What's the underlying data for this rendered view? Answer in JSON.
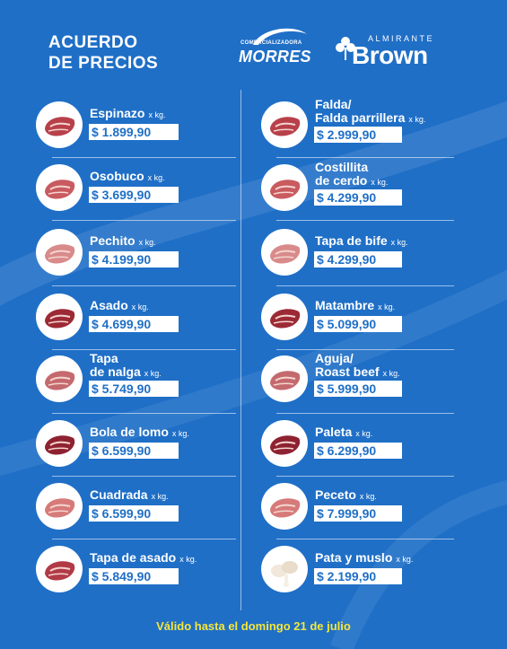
{
  "header": {
    "title_line1": "ACUERDO",
    "title_line2": "DE PRECIOS"
  },
  "logos": {
    "morres_small": "COMERCIALIZADORA",
    "morres_big": "MORRES",
    "brown_small": "ALMIRANTE",
    "brown_big": "Brown"
  },
  "items": [
    {
      "line1": "Espinazo",
      "line2": "",
      "unit": "x kg.",
      "price": "$ 1.899,90",
      "icon": "meat-cut-icon"
    },
    {
      "line1": "Osobuco",
      "line2": "",
      "unit": "x kg.",
      "price": "$ 3.699,90",
      "icon": "meat-cut-icon"
    },
    {
      "line1": "Pechito",
      "line2": "",
      "unit": "x kg.",
      "price": "$ 4.199,90",
      "icon": "meat-cut-icon"
    },
    {
      "line1": "Asado",
      "line2": "",
      "unit": "x kg.",
      "price": "$ 4.699,90",
      "icon": "meat-cut-icon"
    },
    {
      "line1": "Tapa",
      "line2": "de nalga",
      "unit": "x kg.",
      "price": "$ 5.749,90",
      "icon": "meat-cut-icon"
    },
    {
      "line1": "Bola de lomo",
      "line2": "",
      "unit": "x kg.",
      "price": "$ 6.599,90",
      "icon": "meat-cut-icon"
    },
    {
      "line1": "Cuadrada",
      "line2": "",
      "unit": "x kg.",
      "price": "$ 6.599,90",
      "icon": "meat-cut-icon"
    },
    {
      "line1": "Tapa de asado",
      "line2": "",
      "unit": "x kg.",
      "price": "$ 5.849,90",
      "icon": "meat-cut-icon"
    },
    {
      "line1": "Falda/",
      "line2": "Falda parrillera",
      "unit": "x kg.",
      "price": "$ 2.999,90",
      "icon": "meat-cut-icon"
    },
    {
      "line1": "Costillita",
      "line2": "de cerdo",
      "unit": "x kg.",
      "price": "$ 4.299,90",
      "icon": "meat-cut-icon"
    },
    {
      "line1": "Tapa de bife",
      "line2": "",
      "unit": "x kg.",
      "price": "$ 4.299,90",
      "icon": "meat-cut-icon"
    },
    {
      "line1": "Matambre",
      "line2": "",
      "unit": "x kg.",
      "price": "$ 5.099,90",
      "icon": "meat-cut-icon"
    },
    {
      "line1": "Aguja/",
      "line2": "Roast beef",
      "unit": "x kg.",
      "price": "$ 5.999,90",
      "icon": "meat-cut-icon"
    },
    {
      "line1": "Paleta",
      "line2": "",
      "unit": "x kg.",
      "price": "$ 6.299,90",
      "icon": "meat-cut-icon"
    },
    {
      "line1": "Peceto",
      "line2": "",
      "unit": "x kg.",
      "price": "$ 7.999,90",
      "icon": "meat-cut-icon"
    },
    {
      "line1": "Pata y muslo",
      "line2": "",
      "unit": "x kg.",
      "price": "$ 2.199,90",
      "icon": "chicken-icon"
    }
  ],
  "footer": {
    "text": "Válido hasta el domingo 21 de julio"
  },
  "colors": {
    "background": "#1f6fc7",
    "price_text": "#1f6fc7",
    "footer_text": "#f5e63a"
  }
}
